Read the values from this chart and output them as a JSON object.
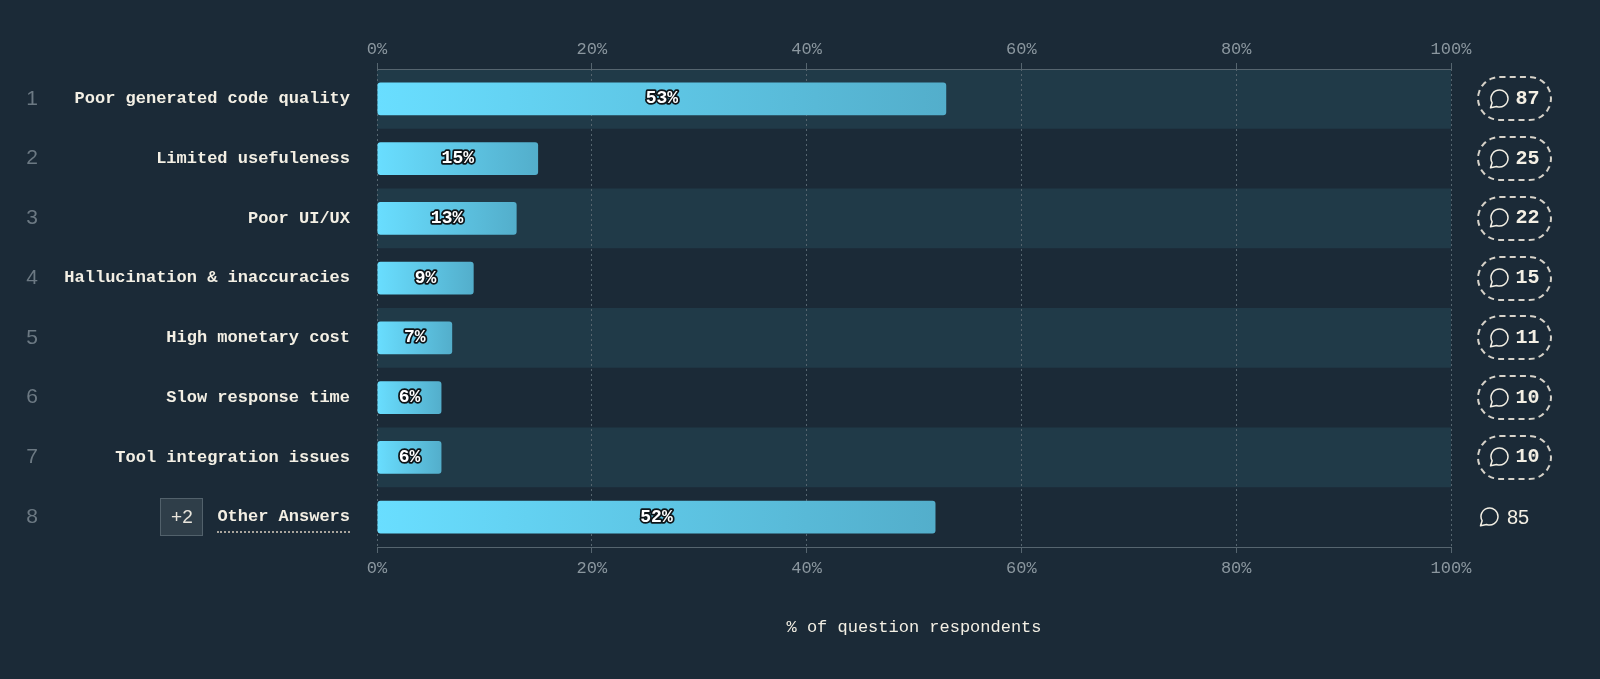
{
  "chart_data": {
    "type": "bar",
    "orientation": "horizontal",
    "xlabel": "% of question respondents",
    "categories": [
      "Poor generated code quality",
      "Limited usefuleness",
      "Poor UI/UX",
      "Hallucination & inaccuracies",
      "High monetary cost",
      "Slow response time",
      "Tool integration issues",
      "Other Answers"
    ],
    "values": [
      53,
      15,
      13,
      9,
      7,
      6,
      6,
      52
    ],
    "value_labels": [
      "53%",
      "15%",
      "13%",
      "9%",
      "7%",
      "6%",
      "6%",
      "52%"
    ],
    "color": "#5ec6e7",
    "xlim": [
      0,
      100
    ],
    "xticks": [
      {
        "value": 0,
        "label": "0%"
      },
      {
        "value": 20,
        "label": "20%"
      },
      {
        "value": 40,
        "label": "40%"
      },
      {
        "value": 60,
        "label": "60%"
      },
      {
        "value": 80,
        "label": "80%"
      },
      {
        "value": 100,
        "label": "100%"
      }
    ],
    "x2lim": [
      0,
      100
    ],
    "x2ticks": [
      {
        "value": 0,
        "label": "0%"
      },
      {
        "value": 20,
        "label": "20%"
      },
      {
        "value": 40,
        "label": "40%"
      },
      {
        "value": 60,
        "label": "60%"
      },
      {
        "value": 80,
        "label": "80%"
      },
      {
        "value": 100,
        "label": "100%"
      }
    ],
    "grid": "x",
    "y2_categories": [
      "87",
      "25",
      "22",
      "15",
      "11",
      "10",
      "10",
      "85"
    ],
    "bands": [
      {
        "axis": "y",
        "from": "Poor generated code quality",
        "to": "Poor generated code quality",
        "color": "#203a48"
      },
      {
        "axis": "y",
        "from": "Poor UI/UX",
        "to": "Poor UI/UX",
        "color": "#203a48"
      },
      {
        "axis": "y",
        "from": "High monetary cost",
        "to": "High monetary cost",
        "color": "#203a48"
      },
      {
        "axis": "y",
        "from": "Tool integration issues",
        "to": "Tool integration issues",
        "color": "#203a48"
      }
    ],
    "annotations": [
      "1",
      "2",
      "3",
      "4",
      "5",
      "6",
      "7",
      "8",
      "+2"
    ]
  }
}
